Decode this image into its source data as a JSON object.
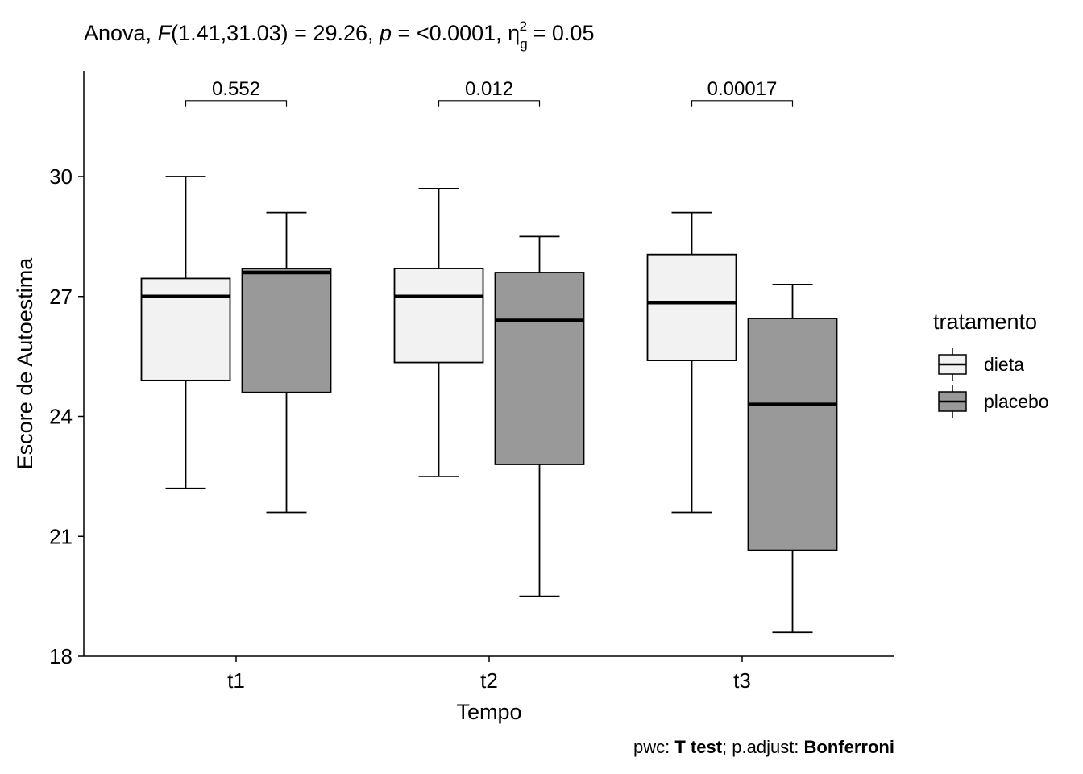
{
  "chart_data": {
    "type": "boxplot",
    "title_parts": {
      "prefix": "Anova, ",
      "f_symbol": "F",
      "f_args": "(1.41,31.03) = 29.26, ",
      "p_symbol": "p",
      "p_value": " = <0.0001, ",
      "eta_symbol": "η",
      "eta_sub": "g",
      "eta_sup": "2",
      "eta_value": " = 0.05"
    },
    "xlabel": "Tempo",
    "ylabel": "Escore de Autoestima",
    "ylim": [
      18,
      32.2
    ],
    "yticks": [
      18,
      21,
      24,
      27,
      30
    ],
    "categories": [
      "t1",
      "t2",
      "t3"
    ],
    "legend": {
      "title": "tratamento",
      "placement": "right",
      "entries": [
        {
          "name": "dieta",
          "color": "#F2F2F2"
        },
        {
          "name": "placebo",
          "color": "#999999"
        }
      ]
    },
    "series": [
      {
        "name": "dieta",
        "color": "#F2F2F2",
        "boxes": [
          {
            "category": "t1",
            "min": 22.2,
            "q1": 24.9,
            "median": 27.0,
            "q3": 27.45,
            "max": 30.0
          },
          {
            "category": "t2",
            "min": 22.5,
            "q1": 25.35,
            "median": 27.0,
            "q3": 27.7,
            "max": 29.7
          },
          {
            "category": "t3",
            "min": 21.6,
            "q1": 25.4,
            "median": 26.85,
            "q3": 28.05,
            "max": 29.1
          }
        ]
      },
      {
        "name": "placebo",
        "color": "#999999",
        "boxes": [
          {
            "category": "t1",
            "min": 21.6,
            "q1": 24.6,
            "median": 27.6,
            "q3": 27.7,
            "max": 29.1
          },
          {
            "category": "t2",
            "min": 19.5,
            "q1": 22.8,
            "median": 26.4,
            "q3": 27.6,
            "max": 28.5
          },
          {
            "category": "t3",
            "min": 18.6,
            "q1": 20.65,
            "median": 24.3,
            "q3": 26.45,
            "max": 27.3
          }
        ]
      }
    ],
    "pairwise": [
      {
        "category": "t1",
        "label": "0.552"
      },
      {
        "category": "t2",
        "label": "0.012"
      },
      {
        "category": "t3",
        "label": "0.00017"
      }
    ],
    "bracket_y": 31.9,
    "caption_parts": {
      "pwc_label": "pwc: ",
      "test": "T test",
      "sep": "; p.adjust: ",
      "method": "Bonferroni"
    }
  }
}
